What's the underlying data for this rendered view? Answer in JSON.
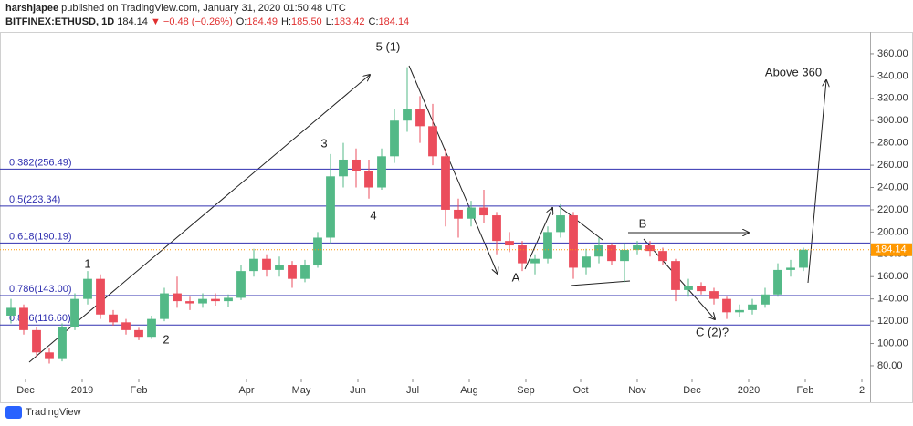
{
  "header": {
    "author": "harshjapee",
    "published": "published on TradingView.com, January 31, 2020 01:50:48 UTC",
    "symbol": "BITFINEX:ETHUSD, 1D",
    "price": "184.14",
    "change": "▼ −0.48 (−0.26%)",
    "ohlc": [
      {
        "label": "O:",
        "value": "184.49"
      },
      {
        "label": "H:",
        "value": "185.50"
      },
      {
        "label": "L:",
        "value": "183.42"
      },
      {
        "label": "C:",
        "value": "184.14"
      }
    ]
  },
  "chart_data": {
    "type": "candlestick",
    "x": [
      -8,
      -1,
      6,
      13,
      20,
      27,
      34,
      41,
      48,
      55,
      62,
      69,
      76,
      83,
      90,
      97,
      104,
      111,
      118,
      125,
      132,
      139,
      146,
      153,
      160,
      167,
      174,
      181,
      188,
      195,
      202,
      209,
      216,
      223,
      230,
      237,
      244,
      251,
      258,
      265,
      272,
      279,
      286,
      293,
      300,
      307,
      314,
      321,
      328,
      335,
      342,
      349,
      356,
      363,
      370,
      377,
      384,
      391,
      398,
      405,
      412,
      419,
      426
    ],
    "open": [
      125,
      132,
      112,
      92,
      86,
      115,
      140,
      158,
      126,
      119,
      112,
      106,
      122,
      145,
      138,
      136,
      140,
      138,
      141,
      165,
      176,
      166,
      170,
      158,
      170,
      195,
      250,
      265,
      255,
      240,
      268,
      300,
      310,
      295,
      268,
      220,
      212,
      222,
      215,
      192,
      188,
      172,
      176,
      200,
      215,
      168,
      178,
      188,
      174,
      184,
      188,
      183,
      174,
      148,
      152,
      147,
      140,
      128,
      130,
      135,
      144,
      166,
      168
    ],
    "high": [
      140,
      135,
      115,
      96,
      118,
      145,
      165,
      162,
      130,
      122,
      114,
      125,
      150,
      160,
      142,
      145,
      145,
      144,
      170,
      185,
      180,
      178,
      174,
      175,
      200,
      270,
      280,
      275,
      265,
      275,
      310,
      348,
      322,
      315,
      275,
      230,
      228,
      238,
      218,
      200,
      192,
      180,
      205,
      225,
      218,
      185,
      195,
      190,
      190,
      192,
      192,
      186,
      176,
      158,
      155,
      150,
      142,
      135,
      140,
      150,
      172,
      175,
      186
    ],
    "low": [
      118,
      108,
      88,
      82,
      84,
      112,
      135,
      122,
      116,
      108,
      103,
      104,
      120,
      132,
      130,
      132,
      134,
      133,
      139,
      160,
      160,
      160,
      150,
      155,
      168,
      190,
      240,
      240,
      230,
      238,
      262,
      290,
      280,
      260,
      205,
      195,
      205,
      208,
      180,
      182,
      165,
      162,
      172,
      195,
      158,
      162,
      172,
      170,
      155,
      180,
      178,
      170,
      138,
      142,
      144,
      135,
      122,
      124,
      126,
      132,
      142,
      160,
      165
    ],
    "close": [
      132,
      112,
      92,
      86,
      115,
      140,
      158,
      126,
      119,
      112,
      106,
      122,
      145,
      138,
      136,
      140,
      138,
      141,
      165,
      176,
      166,
      170,
      158,
      170,
      195,
      250,
      265,
      255,
      240,
      268,
      300,
      310,
      295,
      268,
      220,
      212,
      222,
      215,
      192,
      188,
      172,
      176,
      200,
      215,
      168,
      178,
      188,
      174,
      184,
      188,
      183,
      174,
      148,
      152,
      147,
      140,
      128,
      130,
      135,
      144,
      166,
      168,
      184.14
    ],
    "up_color": "#53b987",
    "down_color": "#eb4d5c",
    "xlim": [
      -14,
      462.5
    ],
    "xticks": [
      {
        "value": 0,
        "label": "Dec"
      },
      {
        "value": 31,
        "label": "2019"
      },
      {
        "value": 62,
        "label": "Feb"
      },
      {
        "value": 121,
        "label": "Apr"
      },
      {
        "value": 151,
        "label": "May"
      },
      {
        "value": 182,
        "label": "Jun"
      },
      {
        "value": 212,
        "label": "Jul"
      },
      {
        "value": 243,
        "label": "Aug"
      },
      {
        "value": 274,
        "label": "Sep"
      },
      {
        "value": 304,
        "label": "Oct"
      },
      {
        "value": 335,
        "label": "Nov"
      },
      {
        "value": 365,
        "label": "Dec"
      },
      {
        "value": 396,
        "label": "2020"
      },
      {
        "value": 427,
        "label": "Feb"
      },
      {
        "value": 458,
        "label": "2"
      }
    ],
    "ylim": [
      68.5,
      379.6
    ],
    "yticks": [
      {
        "value": 80,
        "label": "80.00"
      },
      {
        "value": 100,
        "label": "100.00"
      },
      {
        "value": 120,
        "label": "120.00"
      },
      {
        "value": 140,
        "label": "140.00"
      },
      {
        "value": 160,
        "label": "160.00"
      },
      {
        "value": 180,
        "label": "180.00"
      },
      {
        "value": 200,
        "label": "200.00"
      },
      {
        "value": 220,
        "label": "220.00"
      },
      {
        "value": 240,
        "label": "240.00"
      },
      {
        "value": 260,
        "label": "260.00"
      },
      {
        "value": 280,
        "label": "280.00"
      },
      {
        "value": 300,
        "label": "300.00"
      },
      {
        "value": 320,
        "label": "320.00"
      },
      {
        "value": 340,
        "label": "340.00"
      },
      {
        "value": 360,
        "label": "360.00"
      }
    ],
    "levels": [
      {
        "value": 256.49,
        "label": "0.382(256.49)"
      },
      {
        "value": 223.34,
        "label": "0.5(223.34)"
      },
      {
        "value": 190.19,
        "label": "0.618(190.19)"
      },
      {
        "value": 143.0,
        "label": "0.786(143.00)"
      },
      {
        "value": 116.6,
        "label": "0.886(116.60)"
      }
    ],
    "level_color": "#3030b0",
    "last_price": 184.14,
    "last_price_color": "#ff9800",
    "annotations": [
      "5 (1)",
      "3",
      "4",
      "1",
      "2",
      "A",
      "B",
      "C (2)?",
      "Above 360"
    ]
  },
  "footer": {
    "brand": "TradingView"
  }
}
